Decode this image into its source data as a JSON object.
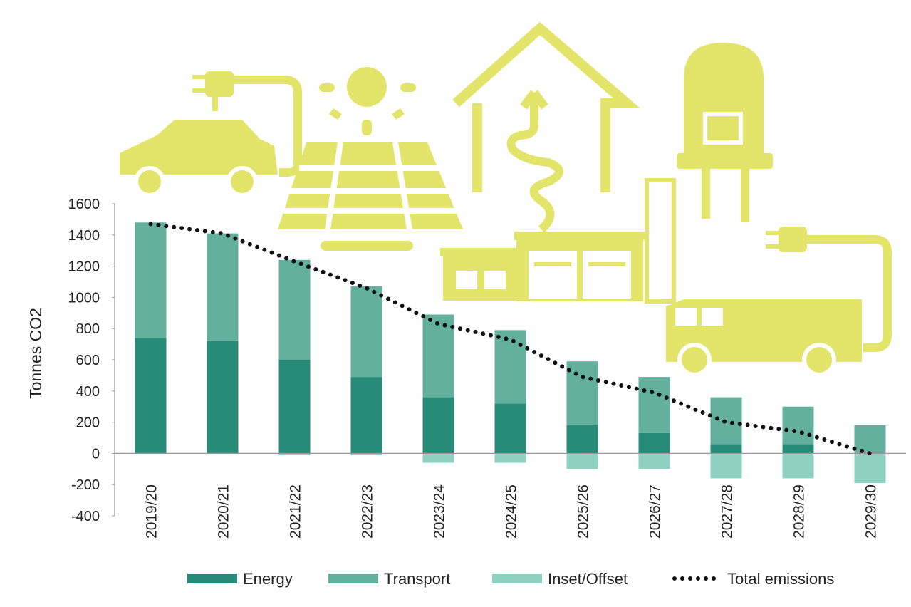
{
  "chart_data": {
    "type": "bar",
    "y_label": "Tonnes CO2",
    "categories": [
      "2019/20",
      "2020/21",
      "2021/22",
      "2022/23",
      "2023/24",
      "2024/25",
      "2025/26",
      "2026/27",
      "2027/28",
      "2028/29",
      "2029/30"
    ],
    "series": [
      {
        "name": "Energy",
        "color": "#268b77",
        "type": "bar",
        "values": [
          740,
          720,
          600,
          490,
          360,
          320,
          180,
          130,
          60,
          60,
          0
        ]
      },
      {
        "name": "Transport",
        "color": "#63b19d",
        "type": "bar",
        "values": [
          740,
          690,
          640,
          580,
          530,
          470,
          410,
          360,
          300,
          240,
          180
        ]
      },
      {
        "name": "Inset/Offset",
        "color": "#8fd1c1",
        "type": "bar",
        "values": [
          0,
          0,
          -10,
          -10,
          -60,
          -60,
          -100,
          -100,
          -160,
          -160,
          -190
        ]
      },
      {
        "name": "Total emissions",
        "color": "#111111",
        "type": "line",
        "values": [
          1470,
          1410,
          1230,
          1060,
          830,
          730,
          490,
          390,
          200,
          140,
          0
        ]
      }
    ],
    "ylim": [
      -400,
      1600
    ],
    "yticks": [
      -400,
      -200,
      0,
      200,
      400,
      600,
      800,
      1000,
      1200,
      1400,
      1600
    ],
    "legend": "bottom"
  }
}
